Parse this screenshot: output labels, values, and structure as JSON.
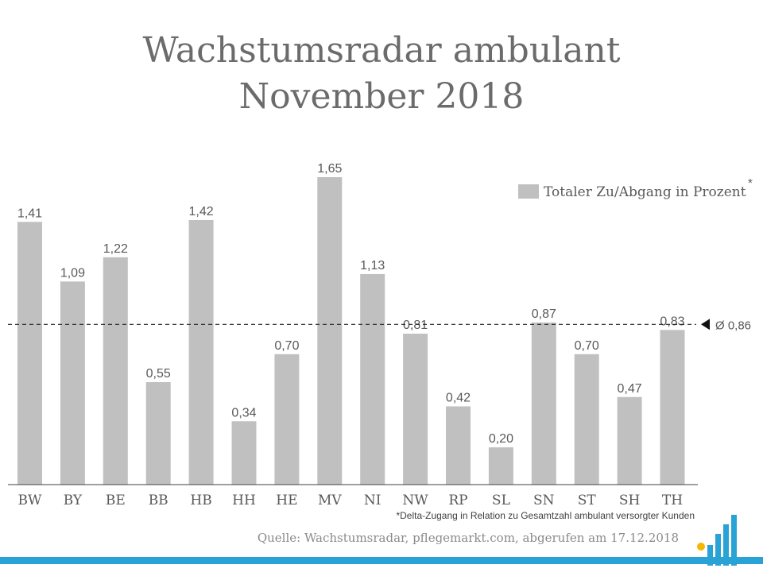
{
  "title_line1": "Wachstumsradar ambulant",
  "title_line2": "November 2018",
  "footnote": "*Delta-Zugang in Relation zu Gesamtzahl ambulant versorgter Kunden",
  "source": "Quelle: Wachstumsradar, pflegemarkt.com, abgerufen am 17.12.2018",
  "colors": {
    "bar": "#c0c0c0",
    "text": "#595959",
    "accent": "#29a3d6",
    "logo_dot": "#f5b800"
  },
  "chart_data": {
    "type": "bar",
    "categories": [
      "BW",
      "BY",
      "BE",
      "BB",
      "HB",
      "HH",
      "HE",
      "MV",
      "NI",
      "NW",
      "RP",
      "SL",
      "SN",
      "ST",
      "SH",
      "TH"
    ],
    "values": [
      1.41,
      1.09,
      1.22,
      0.55,
      1.42,
      0.34,
      0.7,
      1.65,
      1.13,
      0.81,
      0.42,
      0.2,
      0.87,
      0.7,
      0.47,
      0.83
    ],
    "value_labels": [
      "1,41",
      "1,09",
      "1,22",
      "0,55",
      "1,42",
      "0,34",
      "0,70",
      "1,65",
      "1,13",
      "0,81",
      "0,42",
      "0,20",
      "0,87",
      "0,70",
      "0,47",
      "0,83"
    ],
    "series": [
      {
        "name": "Totaler Zu/Abgang in Prozent",
        "values": [
          1.41,
          1.09,
          1.22,
          0.55,
          1.42,
          0.34,
          0.7,
          1.65,
          1.13,
          0.81,
          0.42,
          0.2,
          0.87,
          0.7,
          0.47,
          0.83
        ]
      }
    ],
    "legend_marker": "*",
    "average": {
      "value": 0.86,
      "label": "Ø 0,86"
    },
    "ylim": [
      0,
      1.65
    ],
    "grid": false,
    "legend_position": "top-right"
  }
}
